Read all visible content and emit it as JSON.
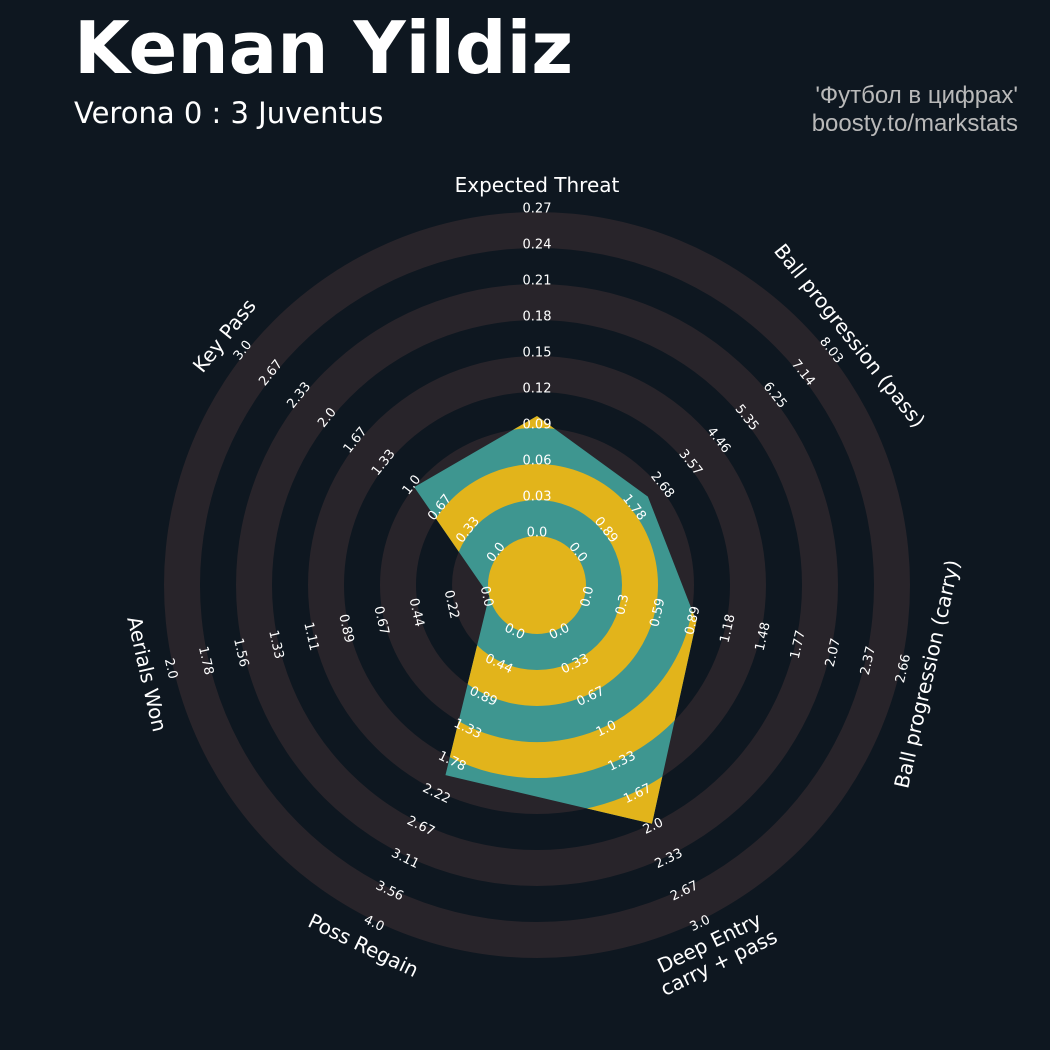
{
  "header": {
    "title": "Kenan Yildiz",
    "subtitle": "Verona 0 : 3 Juventus",
    "credit_line1": "'Футбол в цифрах'",
    "credit_line2": "boosty.to/markstats"
  },
  "colors": {
    "background": "#0e1720",
    "ring": "#28242a",
    "radar": "#3e9690",
    "radar_alt": "#e2b41b",
    "text": "#ffffff"
  },
  "chart_data": {
    "type": "radar",
    "params": [
      {
        "label": [
          "Expected Threat"
        ],
        "min": 0,
        "max": 0.27,
        "value": 0.1,
        "ticks": [
          "0.0",
          "0.03",
          "0.06",
          "0.09",
          "0.12",
          "0.15",
          "0.18",
          "0.21",
          "0.24",
          "0.27"
        ]
      },
      {
        "label": [
          "Ball progression (pass)"
        ],
        "min": 0,
        "max": 8.03,
        "value": 2.3,
        "ticks": [
          "0.0",
          "0.89",
          "1.78",
          "2.68",
          "3.57",
          "4.46",
          "5.35",
          "6.25",
          "7.14",
          "8.03"
        ]
      },
      {
        "label": [
          "Ball progression (carry)"
        ],
        "min": 0,
        "max": 2.66,
        "value": 0.94,
        "ticks": [
          "0.0",
          "0.3",
          "0.59",
          "0.89",
          "1.18",
          "1.48",
          "1.77",
          "2.07",
          "2.37",
          "2.66"
        ]
      },
      {
        "label": [
          "Deep Entry",
          "carry + pass"
        ],
        "min": 0,
        "max": 3.0,
        "value": 2.0,
        "ticks": [
          "0.0",
          "0.33",
          "0.67",
          "1.0",
          "1.33",
          "1.67",
          "2.0",
          "2.33",
          "2.67",
          "3.0"
        ]
      },
      {
        "label": [
          "Poss Regain"
        ],
        "min": 0,
        "max": 4.0,
        "value": 2.0,
        "ticks": [
          "0.0",
          "0.44",
          "0.89",
          "1.33",
          "1.78",
          "2.22",
          "2.67",
          "3.11",
          "3.56",
          "4.0"
        ]
      },
      {
        "label": [
          "Aerials Won"
        ],
        "min": 0,
        "max": 2.0,
        "value": 0.0,
        "ticks": [
          "0.0",
          "0.22",
          "0.44",
          "0.67",
          "0.89",
          "1.11",
          "1.33",
          "1.56",
          "1.78",
          "2.0"
        ]
      },
      {
        "label": [
          "Key Pass"
        ],
        "min": 0,
        "max": 3.0,
        "value": 1.0,
        "ticks": [
          "0.0",
          "0.33",
          "0.67",
          "1.0",
          "1.33",
          "1.67",
          "2.0",
          "2.33",
          "2.67",
          "3.0"
        ]
      }
    ]
  }
}
